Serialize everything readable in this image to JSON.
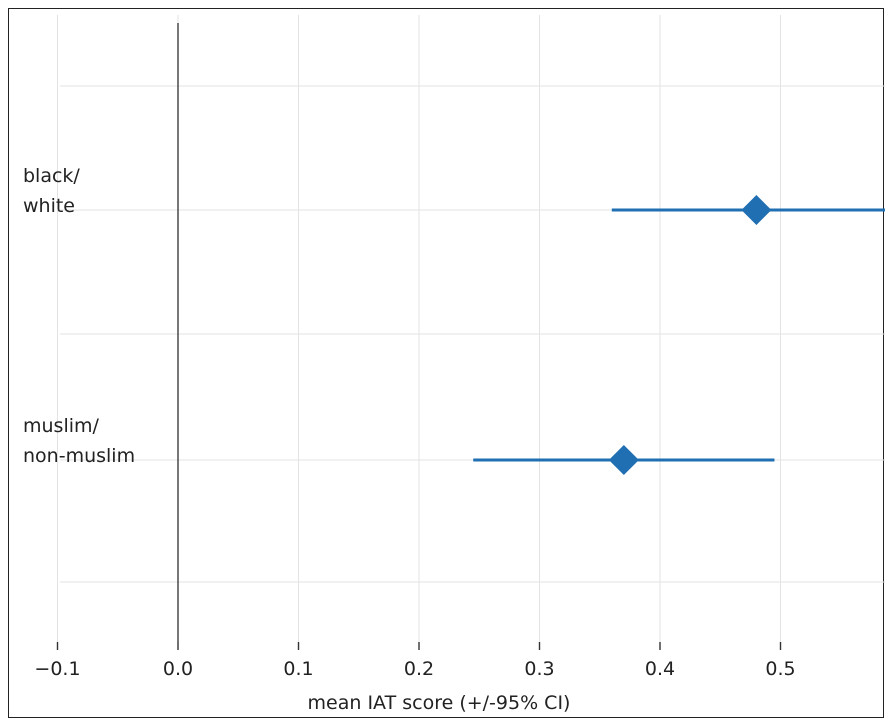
{
  "chart_data": {
    "type": "forest",
    "xlabel": "mean IAT score (+/-95% CI)",
    "xlim": [
      -0.1,
      0.59
    ],
    "x_ticks": [
      -0.1,
      0.0,
      0.1,
      0.2,
      0.3,
      0.4,
      0.5
    ],
    "x_tick_labels": [
      "−0.1",
      "0.0",
      "0.1",
      "0.2",
      "0.3",
      "0.4",
      "0.5"
    ],
    "reference_line_x": 0.0,
    "grid": true,
    "color": "#1f6fb2",
    "categories": [
      {
        "label_lines": [
          "black/",
          "white"
        ],
        "mean": 0.48,
        "ci_low": 0.36,
        "ci_high": 0.59
      },
      {
        "label_lines": [
          "muslim/",
          "non-muslim"
        ],
        "mean": 0.37,
        "ci_low": 0.245,
        "ci_high": 0.495
      }
    ]
  }
}
